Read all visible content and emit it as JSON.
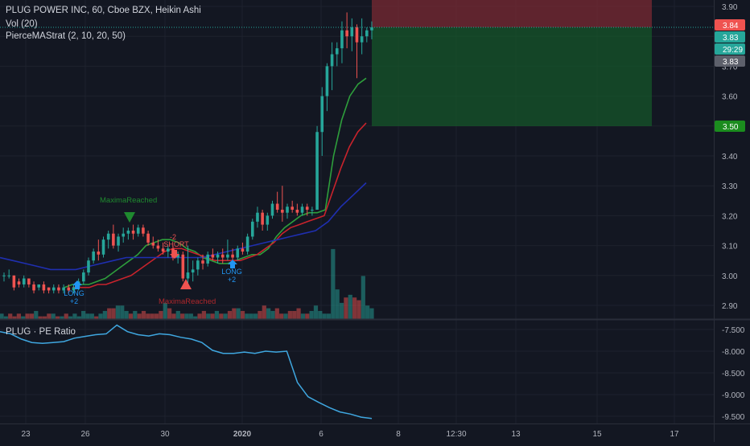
{
  "header": {
    "title": "PLUG POWER INC, 60, Cboe BZX, Heikin Ashi",
    "vol_label": "Vol (20)",
    "strategy_label": "PierceMAStrat (2, 10, 20, 50)",
    "pe_label": "PLUG · PE Ratio"
  },
  "colors": {
    "background": "#131722",
    "up": "#26a69a",
    "down": "#ef5350",
    "ma_fast": "#2e9e3c",
    "ma_mid": "#c8232c",
    "ma_slow": "#1f2fb0",
    "pe_line": "#3fa7e0",
    "axis_text": "#b2b5be"
  },
  "chart_data": [
    {
      "type": "candlestick",
      "title": "PLUG POWER INC, 60, Cboe BZX, Heikin Ashi",
      "ylim": [
        2.86,
        3.93
      ],
      "y_ticks": [
        "3.90",
        "3.80",
        "3.70",
        "3.60",
        "3.50",
        "3.40",
        "3.30",
        "3.20",
        "3.10",
        "3.00",
        "2.90"
      ],
      "x_ticks": [
        "23",
        "26",
        "30",
        "2020",
        "6",
        "8",
        "12:30",
        "13",
        "15",
        "17"
      ],
      "price_labels": [
        {
          "text": "3.84",
          "color": "#ef5350"
        },
        {
          "text": "3.83",
          "color": "#26a69a"
        },
        {
          "text": "29:29",
          "color": "#26a69a"
        },
        {
          "text": "3.83",
          "color": "#5d606b"
        },
        {
          "text": "3.50",
          "color": "#1b8c1e"
        }
      ],
      "position": {
        "entry": 3.84,
        "stop": 3.93,
        "target": 3.5
      },
      "candles": [
        [
          3.0,
          3.01,
          2.98,
          3.0
        ],
        [
          3.0,
          3.02,
          2.99,
          3.0
        ],
        [
          3.0,
          3.0,
          2.95,
          2.96
        ],
        [
          2.98,
          2.99,
          2.96,
          2.97
        ],
        [
          2.97,
          3.0,
          2.96,
          2.99
        ],
        [
          2.99,
          2.99,
          2.96,
          2.97
        ],
        [
          2.97,
          2.98,
          2.94,
          2.95
        ],
        [
          2.96,
          2.97,
          2.95,
          2.97
        ],
        [
          2.97,
          2.98,
          2.94,
          2.95
        ],
        [
          2.96,
          2.96,
          2.94,
          2.95
        ],
        [
          2.95,
          2.97,
          2.94,
          2.96
        ],
        [
          2.96,
          2.97,
          2.94,
          2.95
        ],
        [
          2.95,
          2.97,
          2.94,
          2.96
        ],
        [
          2.96,
          2.97,
          2.94,
          2.95
        ],
        [
          2.95,
          2.97,
          2.94,
          2.96
        ],
        [
          2.96,
          2.99,
          2.95,
          2.98
        ],
        [
          2.98,
          3.02,
          2.97,
          3.01
        ],
        [
          3.01,
          3.06,
          3.0,
          3.05
        ],
        [
          3.05,
          3.09,
          3.04,
          3.08
        ],
        [
          3.08,
          3.12,
          3.05,
          3.07
        ],
        [
          3.07,
          3.13,
          3.06,
          3.12
        ],
        [
          3.12,
          3.15,
          3.09,
          3.14
        ],
        [
          3.14,
          3.17,
          3.09,
          3.1
        ],
        [
          3.1,
          3.14,
          3.08,
          3.13
        ],
        [
          3.13,
          3.16,
          3.11,
          3.14
        ],
        [
          3.14,
          3.16,
          3.12,
          3.15
        ],
        [
          3.15,
          3.17,
          3.12,
          3.14
        ],
        [
          3.14,
          3.17,
          3.13,
          3.16
        ],
        [
          3.16,
          3.17,
          3.13,
          3.14
        ],
        [
          3.14,
          3.15,
          3.1,
          3.11
        ],
        [
          3.11,
          3.13,
          3.09,
          3.1
        ],
        [
          3.1,
          3.12,
          3.08,
          3.09
        ],
        [
          3.09,
          3.11,
          3.07,
          3.08
        ],
        [
          3.08,
          3.1,
          3.06,
          3.09
        ],
        [
          3.09,
          3.1,
          3.05,
          3.06
        ],
        [
          3.06,
          3.08,
          3.04,
          3.07
        ],
        [
          3.07,
          3.08,
          2.98,
          2.99
        ],
        [
          2.99,
          3.1,
          2.96,
          3.01
        ],
        [
          3.01,
          3.05,
          2.98,
          3.02
        ],
        [
          3.02,
          3.06,
          3.0,
          3.05
        ],
        [
          3.05,
          3.07,
          3.02,
          3.04
        ],
        [
          3.04,
          3.08,
          3.03,
          3.07
        ],
        [
          3.07,
          3.09,
          3.05,
          3.06
        ],
        [
          3.06,
          3.08,
          3.04,
          3.07
        ],
        [
          3.07,
          3.09,
          3.04,
          3.06
        ],
        [
          3.06,
          3.12,
          3.05,
          3.07
        ],
        [
          3.07,
          3.09,
          3.05,
          3.06
        ],
        [
          3.06,
          3.1,
          3.05,
          3.09
        ],
        [
          3.09,
          3.11,
          3.07,
          3.08
        ],
        [
          3.08,
          3.14,
          3.07,
          3.13
        ],
        [
          3.13,
          3.19,
          3.12,
          3.18
        ],
        [
          3.18,
          3.23,
          3.16,
          3.21
        ],
        [
          3.21,
          3.22,
          3.15,
          3.17
        ],
        [
          3.17,
          3.21,
          3.15,
          3.2
        ],
        [
          3.2,
          3.25,
          3.19,
          3.24
        ],
        [
          3.24,
          3.28,
          3.21,
          3.22
        ],
        [
          3.22,
          3.3,
          3.18,
          3.21
        ],
        [
          3.21,
          3.24,
          3.19,
          3.23
        ],
        [
          3.23,
          3.25,
          3.21,
          3.22
        ],
        [
          3.22,
          3.24,
          3.2,
          3.21
        ],
        [
          3.21,
          3.24,
          3.2,
          3.23
        ],
        [
          3.23,
          3.24,
          3.2,
          3.22
        ],
        [
          3.22,
          3.23,
          3.2,
          3.22
        ],
        [
          3.22,
          3.5,
          3.22,
          3.48
        ],
        [
          3.48,
          3.63,
          3.4,
          3.6
        ],
        [
          3.6,
          3.71,
          3.55,
          3.7
        ],
        [
          3.7,
          3.78,
          3.62,
          3.74
        ],
        [
          3.74,
          3.78,
          3.7,
          3.76
        ],
        [
          3.76,
          3.85,
          3.71,
          3.82
        ],
        [
          3.82,
          3.88,
          3.76,
          3.8
        ],
        [
          3.8,
          3.86,
          3.75,
          3.83
        ],
        [
          3.83,
          3.84,
          3.66,
          3.78
        ],
        [
          3.78,
          3.86,
          3.74,
          3.8
        ],
        [
          3.8,
          3.83,
          3.78,
          3.82
        ],
        [
          3.82,
          3.85,
          3.79,
          3.83
        ]
      ],
      "series": [
        {
          "values": [
            2.96,
            2.97,
            2.97,
            2.97,
            2.98,
            2.99,
            3.01,
            3.03,
            3.05,
            3.07,
            3.1,
            3.11,
            3.12,
            3.12,
            3.11,
            3.09,
            3.08,
            3.06,
            3.05,
            3.04,
            3.04,
            3.05,
            3.06,
            3.07,
            3.07,
            3.09,
            3.13,
            3.16,
            3.18,
            3.2,
            3.21,
            3.21,
            3.22,
            3.4,
            3.52,
            3.6,
            3.64,
            3.66
          ]
        },
        {
          "values": [
            2.96,
            2.96,
            2.96,
            2.97,
            2.97,
            2.98,
            2.99,
            3.0,
            3.02,
            3.04,
            3.06,
            3.08,
            3.09,
            3.09,
            3.08,
            3.07,
            3.06,
            3.05,
            3.05,
            3.05,
            3.05,
            3.06,
            3.07,
            3.09,
            3.11,
            3.14,
            3.16,
            3.17,
            3.18,
            3.19,
            3.2,
            3.28,
            3.36,
            3.43,
            3.48,
            3.51
          ]
        },
        {
          "values": [
            3.06,
            3.05,
            3.04,
            3.03,
            3.02,
            3.02,
            3.02,
            3.03,
            3.04,
            3.05,
            3.06,
            3.06,
            3.06,
            3.06,
            3.06,
            3.06,
            3.06,
            3.07,
            3.08,
            3.09,
            3.1,
            3.11,
            3.12,
            3.13,
            3.14,
            3.15,
            3.18,
            3.23,
            3.27,
            3.31
          ]
        }
      ],
      "volume": [
        2,
        1,
        2,
        1,
        2,
        1,
        2,
        2,
        3,
        1,
        1,
        2,
        2,
        1,
        1,
        2,
        1,
        2,
        1,
        3,
        2,
        2,
        1,
        2,
        3,
        4,
        4,
        5,
        5,
        3,
        2,
        3,
        2,
        3,
        2,
        2,
        2,
        3,
        6,
        4,
        2,
        3,
        2,
        2,
        2,
        1,
        2,
        3,
        2,
        2,
        3,
        2,
        2,
        3,
        4,
        4,
        3,
        2,
        2,
        2,
        3,
        5,
        4,
        3,
        4,
        2,
        2,
        3,
        3,
        4,
        2,
        2,
        3,
        5,
        3,
        2,
        2,
        26,
        11,
        6,
        8,
        9,
        8,
        7,
        16,
        5,
        4
      ]
    },
    {
      "type": "line",
      "title": "PLUG · PE Ratio",
      "ylim": [
        -9.6,
        -7.3
      ],
      "y_ticks": [
        "-7.500",
        "-8.000",
        "-8.500",
        "-9.000",
        "-9.500"
      ],
      "values": [
        -7.55,
        -7.6,
        -7.72,
        -7.8,
        -7.82,
        -7.8,
        -7.78,
        -7.7,
        -7.66,
        -7.62,
        -7.6,
        -7.4,
        -7.55,
        -7.62,
        -7.65,
        -7.6,
        -7.62,
        -7.68,
        -7.72,
        -7.8,
        -7.98,
        -8.05,
        -8.05,
        -8.02,
        -8.05,
        -8.0,
        -8.02,
        -8.0,
        -8.72,
        -9.05,
        -9.18,
        -9.3,
        -9.4,
        -9.45,
        -9.52,
        -9.55
      ]
    }
  ],
  "annotations": {
    "maxima_top": "MaximaReached",
    "maxima_bottom": "MaximaReached",
    "short_label": "SHORT",
    "short_qty": "-2",
    "long_label_1": "LONG",
    "long_qty_1": "+2",
    "long_label_2": "LONG",
    "long_qty_2": "+2"
  }
}
